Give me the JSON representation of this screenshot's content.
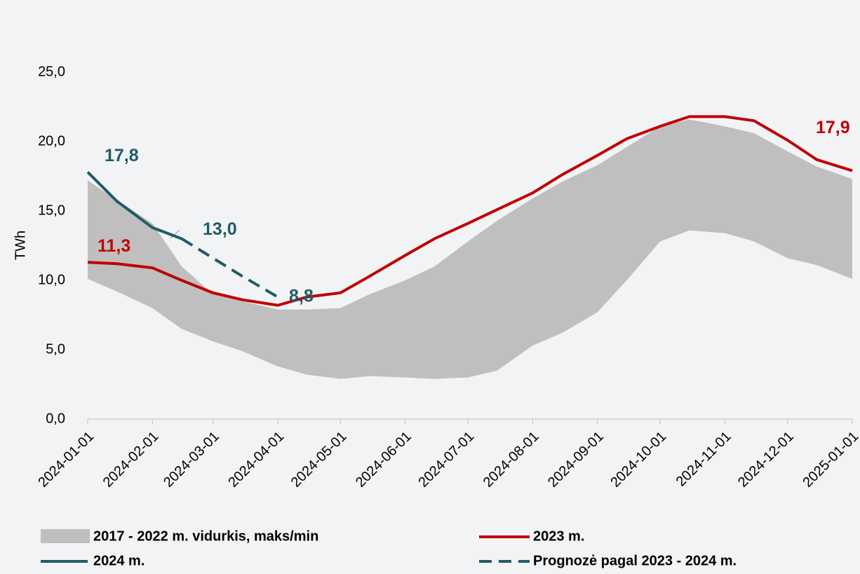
{
  "chart_data": {
    "type": "line",
    "y_label": "TWh",
    "x": [
      "2024-01-01",
      "2024-01-15",
      "2024-02-01",
      "2024-02-15",
      "2024-03-01",
      "2024-03-15",
      "2024-04-01",
      "2024-04-15",
      "2024-05-01",
      "2024-05-15",
      "2024-06-01",
      "2024-06-15",
      "2024-07-01",
      "2024-07-15",
      "2024-08-01",
      "2024-08-15",
      "2024-09-01",
      "2024-09-15",
      "2024-10-01",
      "2024-10-15",
      "2024-11-01",
      "2024-11-15",
      "2024-12-01",
      "2024-12-15",
      "2025-01-01"
    ],
    "xlim": [
      "2024-01-01",
      "2025-01-01"
    ],
    "xticks": [
      "2024-01-01",
      "2024-02-01",
      "2024-03-01",
      "2024-04-01",
      "2024-05-01",
      "2024-06-01",
      "2024-07-01",
      "2024-08-01",
      "2024-09-01",
      "2024-10-01",
      "2024-11-01",
      "2024-12-01",
      "2025-01-01"
    ],
    "ylim": [
      0,
      25
    ],
    "yticks": [
      {
        "value": 0,
        "label": "0,0"
      },
      {
        "value": 5,
        "label": "5,0"
      },
      {
        "value": 10,
        "label": "10,0"
      },
      {
        "value": 15,
        "label": "15,0"
      },
      {
        "value": 20,
        "label": "20,0"
      },
      {
        "value": 25,
        "label": "25,0"
      }
    ],
    "series": [
      {
        "name": "2017 - 2022 m. vidurkis, maks/min",
        "type": "band",
        "color": "#bfbfbf",
        "values": [
          17.2,
          15.8,
          14.1,
          11.0,
          9.0,
          8.5,
          7.9,
          7.9,
          8.0,
          9.0,
          10.0,
          11.0,
          12.8,
          14.3,
          15.9,
          17.1,
          18.3,
          19.6,
          21.1,
          21.6,
          21.1,
          20.6,
          19.3,
          18.2,
          17.3
        ],
        "lower": [
          10.1,
          9.2,
          8.0,
          6.5,
          5.6,
          4.9,
          3.8,
          3.2,
          2.9,
          3.1,
          3.0,
          2.9,
          3.0,
          3.5,
          5.3,
          6.2,
          7.7,
          10.0,
          12.8,
          13.6,
          13.4,
          12.8,
          11.6,
          11.1,
          10.1
        ]
      },
      {
        "name": "2023 m.",
        "type": "line",
        "color": "#c00000",
        "values": [
          11.3,
          11.2,
          10.9,
          10.0,
          9.1,
          8.6,
          8.2,
          8.8,
          9.1,
          10.3,
          11.8,
          13.0,
          14.1,
          15.1,
          16.3,
          17.6,
          19.0,
          20.2,
          21.1,
          21.8,
          21.8,
          21.5,
          20.1,
          18.7,
          17.9
        ],
        "value_labels": [
          "11,3",
          null,
          null,
          null,
          null,
          null,
          null,
          null,
          null,
          null,
          null,
          null,
          null,
          null,
          null,
          null,
          null,
          null,
          null,
          null,
          null,
          null,
          null,
          null,
          "17,9"
        ]
      },
      {
        "name": "2024 m.",
        "type": "line",
        "color": "#1f5c66",
        "values": [
          17.8,
          15.7,
          13.8,
          13.0,
          null,
          null,
          null,
          null,
          null,
          null,
          null,
          null,
          null,
          null,
          null,
          null,
          null,
          null,
          null,
          null,
          null,
          null,
          null,
          null,
          null
        ],
        "value_labels": [
          "17,8",
          null,
          null,
          "13,0",
          null,
          null,
          null,
          null,
          null,
          null,
          null,
          null,
          null,
          null,
          null,
          null,
          null,
          null,
          null,
          null,
          null,
          null,
          null,
          null,
          null
        ]
      },
      {
        "name": "Prognozė pagal 2023 - 2024 m.",
        "type": "line",
        "dashed": true,
        "color": "#1f5c66",
        "values": [
          null,
          null,
          null,
          13.0,
          11.6,
          10.3,
          8.8,
          null,
          null,
          null,
          null,
          null,
          null,
          null,
          null,
          null,
          null,
          null,
          null,
          null,
          null,
          null,
          null,
          null,
          null
        ],
        "value_labels": [
          null,
          null,
          null,
          null,
          null,
          null,
          "8,8",
          null,
          null,
          null,
          null,
          null,
          null,
          null,
          null,
          null,
          null,
          null,
          null,
          null,
          null,
          null,
          null,
          null,
          null
        ]
      }
    ],
    "legend": "bottom"
  }
}
